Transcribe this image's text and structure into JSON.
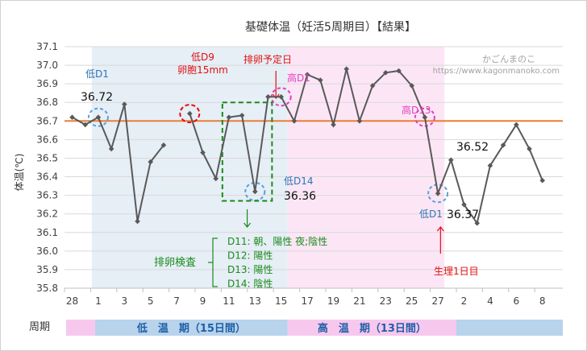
{
  "chart_data": {
    "type": "line",
    "title": "基礎体温（妊活5周期目）【結果】",
    "ylabel": "体温(℃)",
    "ylim": [
      35.8,
      37.1
    ],
    "yticks": [
      "37.1",
      "37.0",
      "36.9",
      "36.8",
      "36.7",
      "36.6",
      "36.5",
      "36.4",
      "36.3",
      "36.2",
      "36.1",
      "36.0",
      "35.9",
      "35.8"
    ],
    "xtick_labels": [
      "28",
      "1",
      "3",
      "5",
      "7",
      "9",
      "11",
      "13",
      "15",
      "17",
      "19",
      "21",
      "23",
      "25",
      "27",
      "2",
      "4",
      "6",
      "8"
    ],
    "threshold": 36.7,
    "grid": true,
    "series": [
      {
        "values": [
          36.72,
          36.68,
          36.72,
          36.55,
          36.79,
          36.16,
          36.48,
          36.57,
          null,
          36.74,
          36.53,
          36.39,
          36.72,
          36.73,
          36.32,
          36.83,
          36.83,
          36.7,
          36.95,
          36.92,
          36.68,
          36.98,
          36.7,
          36.89,
          36.96,
          36.97,
          36.89,
          36.72,
          36.31,
          36.49,
          36.25,
          36.15,
          36.46,
          36.57,
          36.68,
          36.55,
          36.38
        ]
      }
    ],
    "shading": {
      "low_start": 2,
      "low_end": 16.5,
      "high_end": 28.5
    },
    "watermark_lines": [
      "かごんまのこ",
      "https://www.kagonmanoko.com"
    ],
    "annotations": {
      "low_d1": "低D1",
      "low_d1_value": "36.72",
      "low_d9": "低D9",
      "follicle": "卵胞15mm",
      "ovulation_planned": "排卵予定日",
      "high_d1": "高D1",
      "high_d13": "高D13",
      "low_d14": "低D14",
      "low_d14_value": "36.36",
      "next_low_d1": "低D1",
      "next_low_d1_value": "36.37",
      "peak_value": "36.52",
      "period_day1": "生理1日目",
      "ovulation_test": "排卵検査",
      "tests": [
        "D11: 朝、陽性  夜;陰性",
        "D12: 陽性",
        "D13: 陽性",
        "D14: 陰性"
      ]
    },
    "phase_bar": {
      "label": "周期",
      "low_phase": "低　温　期（15日間）",
      "high_phase": "高　温　期（13日間）"
    },
    "colors": {
      "line": "#595959",
      "threshold": "#ed7d31",
      "low_bg": "#e6eef6",
      "high_bg": "#fce6f5",
      "red": "#e01010",
      "blue": "#2e75b6",
      "pink": "#e040c0",
      "green": "#1a8a1a",
      "phase_pink": "#f7c8ee",
      "phase_blue": "#b8d3ec"
    }
  }
}
